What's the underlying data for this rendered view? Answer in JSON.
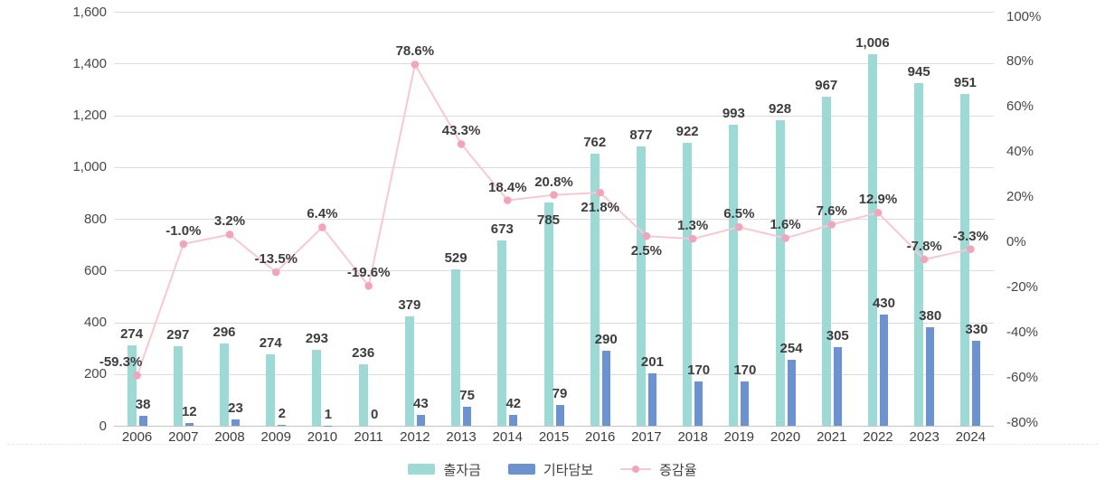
{
  "chart_data": {
    "type": "bar",
    "subtype": "grouped-bars-with-line",
    "categories": [
      "2006",
      "2007",
      "2008",
      "2009",
      "2010",
      "2011",
      "2012",
      "2013",
      "2014",
      "2015",
      "2016",
      "2017",
      "2018",
      "2019",
      "2020",
      "2021",
      "2022",
      "2023",
      "2024"
    ],
    "series": [
      {
        "name": "출자금",
        "type": "bar",
        "color": "#9edad5",
        "values": [
          274,
          297,
          296,
          274,
          293,
          236,
          379,
          529,
          673,
          785,
          762,
          877,
          922,
          993,
          928,
          967,
          1006,
          945,
          951
        ]
      },
      {
        "name": "기타담보",
        "type": "bar",
        "color": "#6c92cf",
        "values": [
          38,
          12,
          23,
          2,
          1,
          0,
          43,
          75,
          42,
          79,
          290,
          201,
          170,
          170,
          254,
          305,
          430,
          380,
          330
        ]
      },
      {
        "name": "증감율",
        "type": "line",
        "color": "#f8c8d2",
        "dot_color": "#f2a5ba",
        "unit": "%",
        "values": [
          -59.3,
          -1.0,
          3.2,
          -13.5,
          6.4,
          -19.6,
          78.6,
          43.3,
          18.4,
          20.8,
          21.8,
          2.5,
          1.3,
          6.5,
          1.6,
          7.6,
          12.9,
          -7.8,
          -3.3
        ]
      }
    ],
    "left_axis": {
      "ticks": [
        "1,600",
        "1,400",
        "1,200",
        "1,000",
        "800",
        "600",
        "400",
        "200",
        "0"
      ],
      "min": 0,
      "max": 1600
    },
    "right_axis": {
      "ticks": [
        "100%",
        "80%",
        "60%",
        "40%",
        "20%",
        "0%",
        "-20%",
        "-40%",
        "-60%",
        "-80%"
      ],
      "values": [
        100,
        80,
        60,
        40,
        20,
        0,
        -20,
        -40,
        -60,
        -80
      ],
      "min": -80,
      "max": 100
    },
    "grid": "horizontal",
    "legend_position": "bottom-center",
    "render_hints": {
      "teal_bar_height_is_sum_of_both_bars": true,
      "pct_label_below_indices": [
        10,
        11
      ],
      "pct_label_dx": {
        "0": -18
      },
      "teal_label_inside_indices": [
        9
      ]
    }
  },
  "legend": {
    "item1": "출자금",
    "item2": "기타담보",
    "item3": "증감율"
  }
}
